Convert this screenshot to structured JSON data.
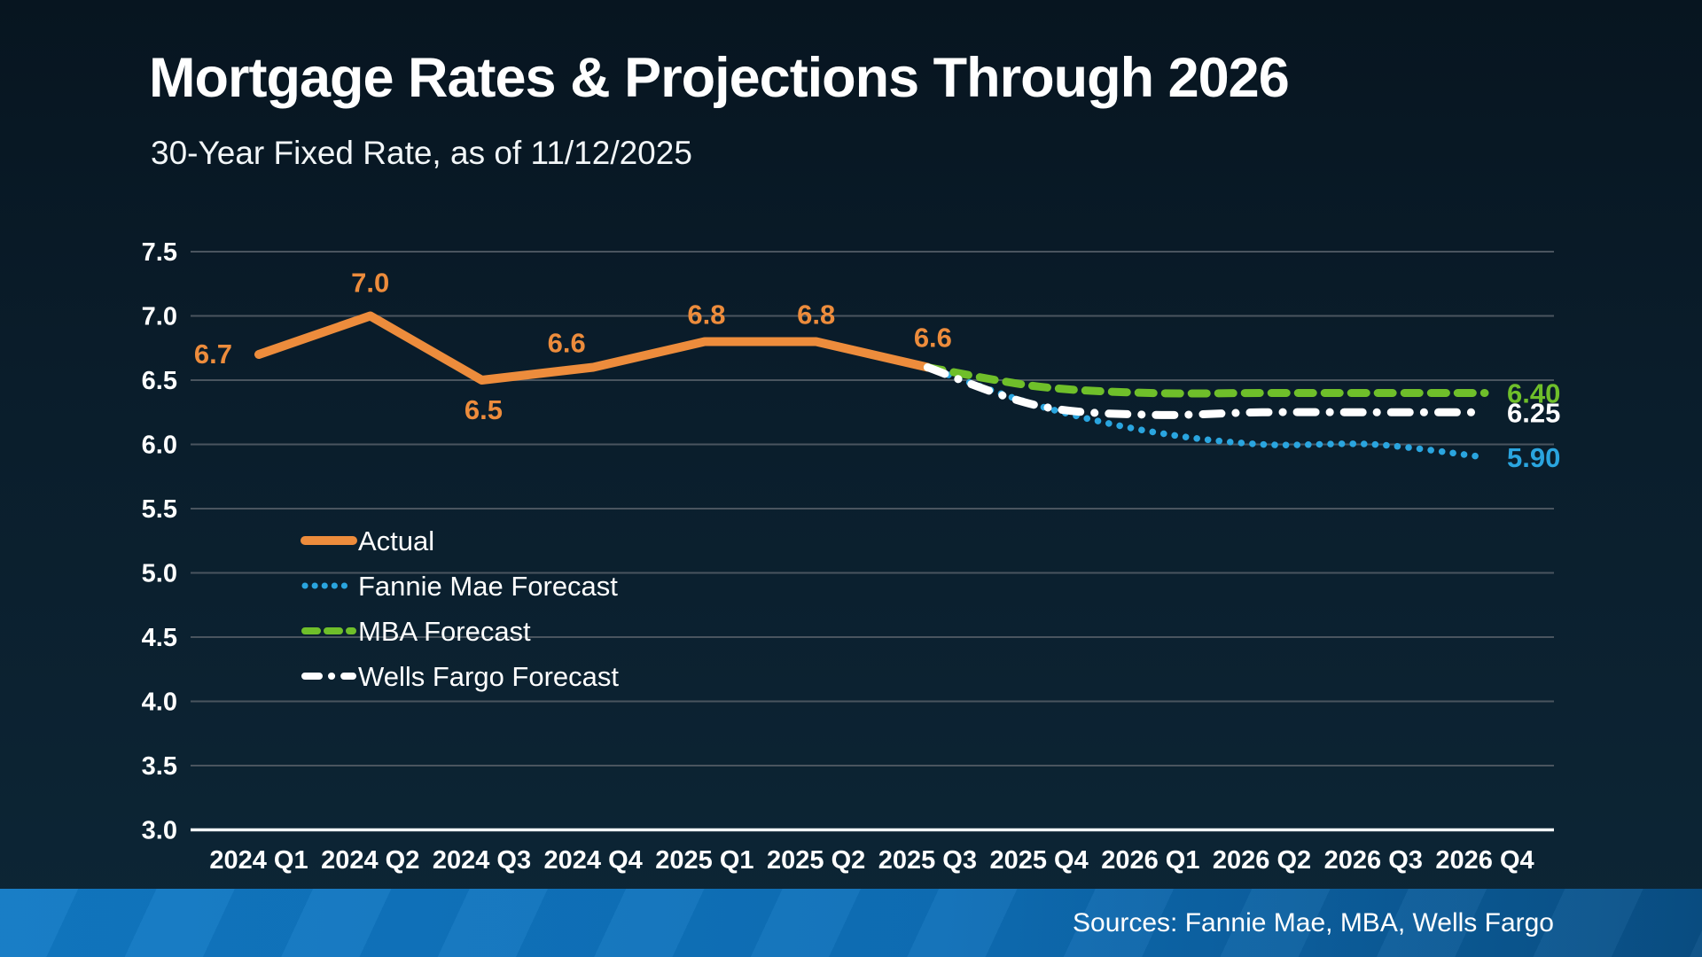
{
  "header": {
    "title": "Mortgage Rates & Projections Through 2026",
    "subtitle": "30-Year Fixed Rate, as of 11/12/2025"
  },
  "footer": {
    "sources": "Sources: Fannie Mae, MBA, Wells Fargo"
  },
  "colors": {
    "background_top": "#071520",
    "background_bottom": "#0d2636",
    "grid": "#4A555F",
    "axis": "#F2F6F8",
    "text": "#FFFFFF",
    "actual": "#ED8C3C",
    "fannie_mae": "#2AA5DF",
    "mba": "#6FBF2A",
    "wells_fargo": "#FFFFFF",
    "footer_bar_left": "#1179C4",
    "footer_bar_right": "#094F85"
  },
  "chart_data": {
    "type": "line",
    "title": "Mortgage Rates & Projections Through 2026",
    "subtitle": "30-Year Fixed Rate, as of 11/12/2025",
    "categories": [
      "2024 Q1",
      "2024 Q2",
      "2024 Q3",
      "2024 Q4",
      "2025 Q1",
      "2025 Q2",
      "2025 Q3",
      "2025 Q4",
      "2026 Q1",
      "2026 Q2",
      "2026 Q3",
      "2026 Q4"
    ],
    "ylim": [
      3.0,
      7.5
    ],
    "ytick_step": 0.5,
    "grid": true,
    "legend_position": "inside-left",
    "legend": [
      "Actual",
      "Fannie Mae Forecast",
      "MBA Forecast",
      "Wells Fargo Forecast"
    ],
    "series": [
      {
        "name": "Actual",
        "color_key": "actual",
        "style": "solid",
        "smooth": false,
        "start_index": 0,
        "values": [
          6.7,
          7.0,
          6.5,
          6.6,
          6.8,
          6.8,
          6.6
        ],
        "point_labels": [
          "6.7",
          "7.0",
          "6.5",
          "6.6",
          "6.8",
          "6.8",
          "6.6"
        ]
      },
      {
        "name": "Fannie Mae Forecast",
        "color_key": "fannie_mae",
        "style": "dotted",
        "smooth": true,
        "start_index": 6,
        "values": [
          6.6,
          6.3,
          6.1,
          6.0,
          6.0,
          5.9
        ],
        "end_label": "5.90"
      },
      {
        "name": "MBA Forecast",
        "color_key": "mba",
        "style": "dashed",
        "smooth": true,
        "start_index": 6,
        "values": [
          6.6,
          6.45,
          6.4,
          6.4,
          6.4,
          6.4
        ],
        "end_label": "6.40"
      },
      {
        "name": "Wells Fargo Forecast",
        "color_key": "wells_fargo",
        "style": "dashdot",
        "smooth": true,
        "start_index": 6,
        "values": [
          6.6,
          6.3,
          6.23,
          6.25,
          6.25,
          6.25
        ],
        "end_label": "6.25"
      }
    ]
  }
}
